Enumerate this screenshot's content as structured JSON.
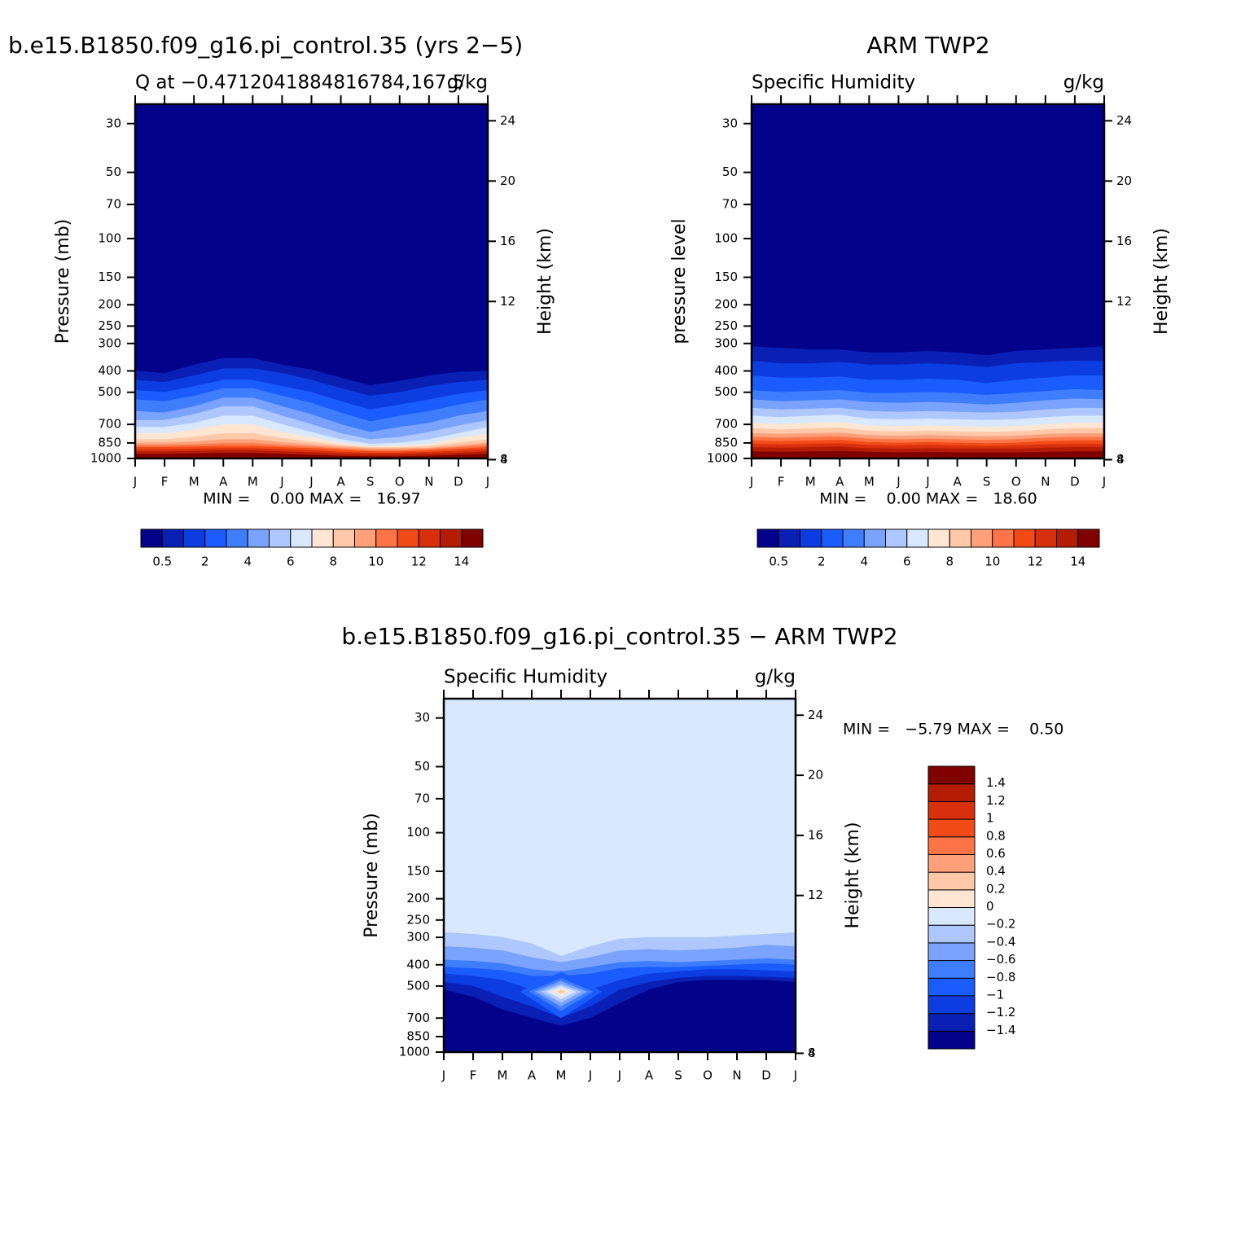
{
  "chart_data": [
    {
      "type": "contour",
      "title": "b.e15.B1850.f09_g16.pi_control.35 (yrs 2−5)",
      "subtitle_left": "Q at −0.4712041884816784,167.5",
      "subtitle_right": "g/kg",
      "ylabel": "Pressure (mb)",
      "y2label": "Height (km)",
      "stats": "MIN =    0.00 MAX =   16.97",
      "categories": [
        "J",
        "F",
        "M",
        "A",
        "M",
        "J",
        "J",
        "A",
        "S",
        "O",
        "N",
        "D",
        "J"
      ],
      "log_y": true,
      "ylim": [
        1000,
        24.5
      ],
      "yticks": [
        30,
        50,
        70,
        100,
        150,
        200,
        250,
        300,
        400,
        500,
        700,
        850,
        1000
      ],
      "y2ticks": [
        4,
        8,
        12,
        16,
        20,
        24
      ],
      "background": "#02028a",
      "colorbar": {
        "orientation": "horizontal",
        "colors": [
          "#02028a",
          "#0a20b5",
          "#0c3de0",
          "#1b5cff",
          "#3f7dff",
          "#7aa3ff",
          "#aec8ff",
          "#d7e8ff",
          "#ffe6d2",
          "#ffc8a8",
          "#ffa07a",
          "#ff7446",
          "#f24b17",
          "#d8300d",
          "#b41d04",
          "#800000"
        ],
        "levels": [
          0.5,
          1,
          2,
          3,
          4,
          5,
          6,
          7,
          8,
          9,
          10,
          11,
          12,
          13,
          14
        ],
        "ticks": [
          0.5,
          2,
          4,
          6,
          8,
          10,
          12,
          14
        ]
      },
      "bands": [
        {
          "color": "#0a20b5",
          "top": [
            400,
            410,
            375,
            350,
            350,
            375,
            395,
            430,
            465,
            445,
            420,
            405,
            400
          ]
        },
        {
          "color": "#0c3de0",
          "top": [
            440,
            450,
            420,
            390,
            390,
            410,
            440,
            480,
            520,
            500,
            470,
            450,
            440
          ]
        },
        {
          "color": "#1b5cff",
          "top": [
            490,
            500,
            470,
            440,
            440,
            470,
            500,
            550,
            600,
            570,
            540,
            510,
            490
          ]
        },
        {
          "color": "#3f7dff",
          "top": [
            540,
            550,
            520,
            480,
            480,
            520,
            560,
            620,
            680,
            640,
            610,
            570,
            540
          ]
        },
        {
          "color": "#7aa3ff",
          "top": [
            610,
            620,
            580,
            530,
            530,
            580,
            630,
            700,
            760,
            720,
            690,
            640,
            610
          ]
        },
        {
          "color": "#aec8ff",
          "top": [
            670,
            670,
            630,
            580,
            580,
            640,
            700,
            770,
            820,
            800,
            760,
            710,
            670
          ]
        },
        {
          "color": "#d7e8ff",
          "top": [
            720,
            720,
            690,
            640,
            640,
            700,
            760,
            820,
            860,
            850,
            820,
            770,
            720
          ]
        },
        {
          "color": "#ffe6d2",
          "top": [
            770,
            770,
            740,
            700,
            700,
            760,
            800,
            850,
            880,
            875,
            860,
            810,
            770
          ]
        },
        {
          "color": "#ffc8a8",
          "top": [
            820,
            820,
            800,
            770,
            770,
            810,
            840,
            870,
            890,
            890,
            880,
            850,
            820
          ]
        },
        {
          "color": "#ffa07a",
          "top": [
            850,
            850,
            840,
            820,
            820,
            845,
            865,
            885,
            900,
            900,
            895,
            875,
            850
          ]
        },
        {
          "color": "#ff7446",
          "top": [
            870,
            870,
            865,
            855,
            855,
            870,
            885,
            900,
            915,
            915,
            905,
            890,
            870
          ]
        },
        {
          "color": "#f24b17",
          "top": [
            890,
            890,
            885,
            880,
            880,
            890,
            900,
            915,
            930,
            930,
            920,
            905,
            890
          ]
        },
        {
          "color": "#d8300d",
          "top": [
            910,
            910,
            905,
            900,
            900,
            910,
            920,
            935,
            945,
            945,
            935,
            925,
            910
          ]
        },
        {
          "color": "#b41d04",
          "top": [
            930,
            930,
            925,
            920,
            920,
            930,
            940,
            955,
            960,
            960,
            955,
            945,
            930
          ]
        },
        {
          "color": "#800000",
          "top": [
            955,
            955,
            950,
            945,
            945,
            955,
            965,
            975,
            980,
            980,
            975,
            965,
            955
          ]
        }
      ]
    },
    {
      "type": "contour",
      "title": "ARM TWP2",
      "subtitle_left": "Specific Humidity",
      "subtitle_right": "g/kg",
      "ylabel": "pressure level",
      "y2label": "Height (km)",
      "stats": "MIN =    0.00 MAX =   18.60",
      "categories": [
        "J",
        "F",
        "M",
        "A",
        "M",
        "J",
        "J",
        "A",
        "S",
        "O",
        "N",
        "D",
        "J"
      ],
      "log_y": true,
      "ylim": [
        1000,
        24.5
      ],
      "yticks": [
        30,
        50,
        70,
        100,
        150,
        200,
        250,
        300,
        400,
        500,
        700,
        850,
        1000
      ],
      "y2ticks": [
        4,
        8,
        12,
        16,
        20,
        24
      ],
      "background": "#02028a",
      "colorbar": {
        "orientation": "horizontal",
        "colors": [
          "#02028a",
          "#0a20b5",
          "#0c3de0",
          "#1b5cff",
          "#3f7dff",
          "#7aa3ff",
          "#aec8ff",
          "#d7e8ff",
          "#ffe6d2",
          "#ffc8a8",
          "#ffa07a",
          "#ff7446",
          "#f24b17",
          "#d8300d",
          "#b41d04",
          "#800000"
        ],
        "levels": [
          0.5,
          1,
          2,
          3,
          4,
          5,
          6,
          7,
          8,
          9,
          10,
          11,
          12,
          13,
          14
        ],
        "ticks": [
          0.5,
          2,
          4,
          6,
          8,
          10,
          12,
          14
        ]
      },
      "bands": [
        {
          "color": "#0a20b5",
          "top": [
            310,
            315,
            320,
            320,
            330,
            330,
            325,
            330,
            340,
            325,
            320,
            315,
            310
          ]
        },
        {
          "color": "#0c3de0",
          "top": [
            360,
            370,
            370,
            365,
            375,
            375,
            370,
            375,
            385,
            370,
            365,
            360,
            360
          ]
        },
        {
          "color": "#1b5cff",
          "top": [
            420,
            430,
            430,
            425,
            440,
            440,
            435,
            440,
            455,
            440,
            430,
            420,
            420
          ]
        },
        {
          "color": "#3f7dff",
          "top": [
            490,
            500,
            495,
            490,
            505,
            505,
            500,
            505,
            515,
            505,
            495,
            485,
            490
          ]
        },
        {
          "color": "#7aa3ff",
          "top": [
            540,
            550,
            545,
            540,
            555,
            560,
            555,
            560,
            570,
            560,
            545,
            535,
            540
          ]
        },
        {
          "color": "#aec8ff",
          "top": [
            590,
            600,
            595,
            590,
            610,
            615,
            610,
            615,
            620,
            615,
            600,
            590,
            590
          ]
        },
        {
          "color": "#d7e8ff",
          "top": [
            640,
            650,
            640,
            635,
            660,
            665,
            660,
            665,
            670,
            665,
            650,
            640,
            640
          ]
        },
        {
          "color": "#ffe6d2",
          "top": [
            690,
            700,
            690,
            685,
            710,
            715,
            710,
            715,
            720,
            715,
            700,
            690,
            690
          ]
        },
        {
          "color": "#ffc8a8",
          "top": [
            730,
            740,
            730,
            725,
            750,
            755,
            750,
            755,
            760,
            755,
            740,
            730,
            730
          ]
        },
        {
          "color": "#ffa07a",
          "top": [
            770,
            775,
            770,
            765,
            785,
            790,
            785,
            790,
            795,
            790,
            775,
            770,
            770
          ]
        },
        {
          "color": "#ff7446",
          "top": [
            800,
            805,
            800,
            795,
            815,
            820,
            815,
            820,
            825,
            820,
            805,
            800,
            800
          ]
        },
        {
          "color": "#f24b17",
          "top": [
            830,
            835,
            830,
            825,
            845,
            850,
            845,
            850,
            855,
            850,
            835,
            830,
            830
          ]
        },
        {
          "color": "#d8300d",
          "top": [
            860,
            865,
            860,
            855,
            870,
            875,
            870,
            875,
            880,
            875,
            865,
            860,
            860
          ]
        },
        {
          "color": "#b41d04",
          "top": [
            890,
            895,
            890,
            885,
            900,
            905,
            900,
            905,
            905,
            905,
            895,
            890,
            890
          ]
        },
        {
          "color": "#800000",
          "top": [
            930,
            935,
            930,
            925,
            935,
            940,
            935,
            940,
            940,
            940,
            935,
            930,
            930
          ]
        }
      ]
    },
    {
      "type": "contour",
      "title": "b.e15.B1850.f09_g16.pi_control.35 − ARM TWP2",
      "subtitle_left": "Specific Humidity",
      "subtitle_right": "g/kg",
      "ylabel": "Pressure (mb)",
      "y2label": "Height (km)",
      "stats": "MIN =   −5.79 MAX =    0.50",
      "categories": [
        "J",
        "F",
        "M",
        "A",
        "M",
        "J",
        "J",
        "A",
        "S",
        "O",
        "N",
        "D",
        "J"
      ],
      "log_y": true,
      "ylim": [
        1000,
        24.5
      ],
      "yticks": [
        30,
        50,
        70,
        100,
        150,
        200,
        250,
        300,
        400,
        500,
        700,
        850,
        1000
      ],
      "y2ticks": [
        4,
        8,
        12,
        16,
        20,
        24
      ],
      "background": "#d7e8ff",
      "colorbar": {
        "orientation": "vertical",
        "colors": [
          "#02028a",
          "#0a20b5",
          "#0c3de0",
          "#1b5cff",
          "#3f7dff",
          "#7aa3ff",
          "#aec8ff",
          "#d7e8ff",
          "#ffe6d2",
          "#ffc8a8",
          "#ffa07a",
          "#ff7446",
          "#f24b17",
          "#d8300d",
          "#b41d04",
          "#800000"
        ],
        "levels": [
          -1.4,
          -1.2,
          -1,
          -0.8,
          -0.6,
          -0.4,
          -0.2,
          0,
          0.2,
          0.4,
          0.6,
          0.8,
          1,
          1.2,
          1.4
        ],
        "ticks": [
          {
            "value": -1.4,
            "label": "−1.4"
          },
          {
            "value": -1.2,
            "label": "−1.2"
          },
          {
            "value": -1,
            "label": "−1"
          },
          {
            "value": -0.8,
            "label": "−0.8"
          },
          {
            "value": -0.6,
            "label": "−0.6"
          },
          {
            "value": -0.4,
            "label": "−0.4"
          },
          {
            "value": -0.2,
            "label": "−0.2"
          },
          0,
          0.2,
          0.4,
          0.6,
          0.8,
          1,
          1.2,
          1.4
        ]
      },
      "bands": [
        {
          "color": "#aec8ff",
          "top": [
            285,
            290,
            300,
            320,
            365,
            330,
            305,
            300,
            300,
            300,
            295,
            290,
            285
          ]
        },
        {
          "color": "#7aa3ff",
          "top": [
            330,
            335,
            345,
            370,
            390,
            370,
            345,
            340,
            345,
            340,
            335,
            325,
            330
          ]
        },
        {
          "color": "#3f7dff",
          "top": [
            380,
            385,
            395,
            420,
            430,
            410,
            390,
            385,
            390,
            385,
            380,
            375,
            380
          ]
        },
        {
          "color": "#1b5cff",
          "top": [
            410,
            415,
            425,
            450,
            450,
            440,
            415,
            410,
            410,
            405,
            400,
            395,
            400
          ]
        },
        {
          "color": "#0c3de0",
          "top": [
            440,
            450,
            470,
            520,
            580,
            520,
            470,
            440,
            430,
            420,
            420,
            425,
            430
          ]
        },
        {
          "color": "#0a20b5",
          "top": [
            480,
            500,
            560,
            620,
            700,
            620,
            520,
            480,
            460,
            450,
            450,
            455,
            460
          ]
        },
        {
          "color": "#02028a",
          "top": [
            520,
            560,
            640,
            700,
            760,
            700,
            600,
            520,
            480,
            470,
            470,
            470,
            480
          ]
        }
      ],
      "regions": [
        {
          "color": "#1b5cff",
          "x": [
            2.6,
            4,
            5.4,
            4
          ],
          "p": [
            530,
            430,
            530,
            700
          ]
        },
        {
          "color": "#3f7dff",
          "x": [
            2.9,
            4,
            5.1,
            4
          ],
          "p": [
            530,
            460,
            530,
            650
          ]
        },
        {
          "color": "#7aa3ff",
          "x": [
            3.1,
            4,
            4.9,
            4
          ],
          "p": [
            530,
            475,
            530,
            620
          ]
        },
        {
          "color": "#aec8ff",
          "x": [
            3.3,
            4,
            4.7,
            4
          ],
          "p": [
            530,
            490,
            530,
            595
          ]
        },
        {
          "color": "#d7e8ff",
          "x": [
            3.5,
            4,
            4.5,
            4
          ],
          "p": [
            530,
            500,
            530,
            575
          ]
        },
        {
          "color": "#ffe6d2",
          "x": [
            3.7,
            4,
            4.3,
            4
          ],
          "p": [
            530,
            510,
            530,
            555
          ]
        },
        {
          "color": "#ffc8a8",
          "x": [
            3.85,
            4,
            4.15,
            4
          ],
          "p": [
            530,
            520,
            530,
            540
          ]
        }
      ]
    }
  ]
}
